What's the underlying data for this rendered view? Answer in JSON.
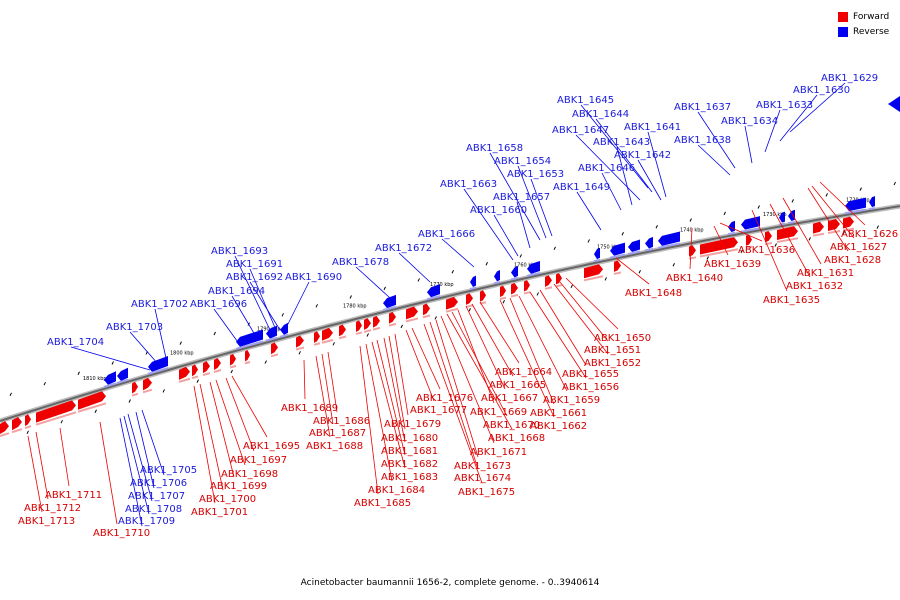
{
  "legend": {
    "forward_label": "Forward",
    "reverse_label": "Reverse",
    "forward_color": "#ee0000",
    "reverse_color": "#0000ee"
  },
  "caption": "Acinetobacter baumannii 1656-2, complete genome. - 0..3940614",
  "chart_data": {
    "type": "diagram",
    "strands": [
      "forward",
      "reverse"
    ],
    "ticks": [
      "1720 kbp",
      "1730 kbp",
      "1740 kbp",
      "1750 kbp",
      "1760 kbp",
      "1770 kbp",
      "1780 kbp",
      "1790 kbp",
      "1800 kbp",
      "1810 kbp"
    ],
    "forward_genes": [
      "ABK1_1626",
      "ABK1_1627",
      "ABK1_1628",
      "ABK1_1631",
      "ABK1_1632",
      "ABK1_1635",
      "ABK1_1636",
      "ABK1_1639",
      "ABK1_1640",
      "ABK1_1648",
      "ABK1_1650",
      "ABK1_1651",
      "ABK1_1652",
      "ABK1_1655",
      "ABK1_1656",
      "ABK1_1659",
      "ABK1_1661",
      "ABK1_1662",
      "ABK1_1664",
      "ABK1_1665",
      "ABK1_1667",
      "ABK1_1669",
      "ABK1_1670",
      "ABK1_1668",
      "ABK1_1671",
      "ABK1_1673",
      "ABK1_1674",
      "ABK1_1675",
      "ABK1_1676",
      "ABK1_1677",
      "ABK1_1679",
      "ABK1_1680",
      "ABK1_1681",
      "ABK1_1682",
      "ABK1_1683",
      "ABK1_1684",
      "ABK1_1685",
      "ABK1_1686",
      "ABK1_1687",
      "ABK1_1688",
      "ABK1_1689",
      "ABK1_1695",
      "ABK1_1697",
      "ABK1_1698",
      "ABK1_1699",
      "ABK1_1700",
      "ABK1_1701",
      "ABK1_1710",
      "ABK1_1711",
      "ABK1_1712",
      "ABK1_1713"
    ],
    "reverse_genes": [
      "ABK1_1629",
      "ABK1_1630",
      "ABK1_1633",
      "ABK1_1634",
      "ABK1_1637",
      "ABK1_1638",
      "ABK1_1641",
      "ABK1_1642",
      "ABK1_1643",
      "ABK1_1644",
      "ABK1_1645",
      "ABK1_1646",
      "ABK1_1647",
      "ABK1_1649",
      "ABK1_1653",
      "ABK1_1654",
      "ABK1_1657",
      "ABK1_1658",
      "ABK1_1660",
      "ABK1_1663",
      "ABK1_1666",
      "ABK1_1672",
      "ABK1_1678",
      "ABK1_1690",
      "ABK1_1691",
      "ABK1_1692",
      "ABK1_1693",
      "ABK1_1694",
      "ABK1_1696",
      "ABK1_1702",
      "ABK1_1703",
      "ABK1_1704",
      "ABK1_1705",
      "ABK1_1706",
      "ABK1_1707",
      "ABK1_1708",
      "ABK1_1709"
    ]
  }
}
